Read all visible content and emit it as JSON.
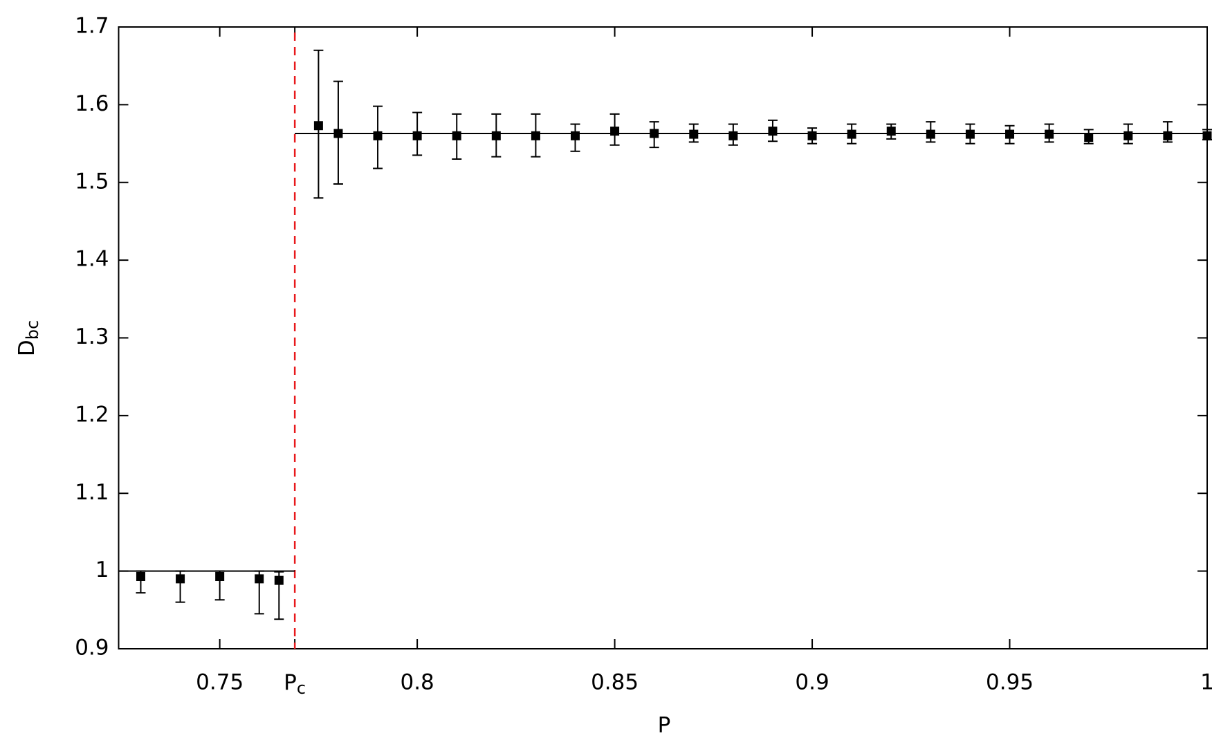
{
  "chart_data": {
    "type": "errorbar",
    "xlabel": "P",
    "ylabel": {
      "text": "D",
      "subscript": "bc"
    },
    "xlim": [
      0.7244,
      1
    ],
    "ylim": [
      0.9,
      1.7
    ],
    "xticks": [
      0.75,
      {
        "value": 0.769,
        "label": "P",
        "subscript": "c"
      },
      0.8,
      0.85,
      0.9,
      0.95,
      1
    ],
    "yticks": [
      0.9,
      1,
      1.1,
      1.2,
      1.3,
      1.4,
      1.5,
      1.6,
      1.7
    ],
    "critical_line": {
      "x": 0.769,
      "color": "#e8191c"
    },
    "fit_lines": [
      {
        "y": 1,
        "xrange": [
          0.7244,
          0.769
        ]
      },
      {
        "y": 1.563,
        "xrange": [
          0.769,
          1
        ]
      }
    ],
    "series": [
      {
        "color": "#000000",
        "x": [
          0.73,
          0.74,
          0.75,
          0.76,
          0.765,
          0.775,
          0.78,
          0.79,
          0.8,
          0.81,
          0.82,
          0.83,
          0.84,
          0.85,
          0.86,
          0.87,
          0.88,
          0.89,
          0.9,
          0.91,
          0.92,
          0.93,
          0.94,
          0.95,
          0.96,
          0.97,
          0.98,
          0.99,
          1
        ],
        "values": [
          0.993,
          0.99,
          0.993,
          0.99,
          0.988,
          1.573,
          1.563,
          1.56,
          1.56,
          1.56,
          1.56,
          1.56,
          1.56,
          1.566,
          1.563,
          1.562,
          1.56,
          1.566,
          1.56,
          1.562,
          1.566,
          1.562,
          1.562,
          1.562,
          1.562,
          1.558,
          1.56,
          1.56,
          1.56
        ],
        "y_low": [
          0.972,
          0.96,
          0.963,
          0.945,
          0.938,
          1.48,
          1.498,
          1.518,
          1.535,
          1.53,
          1.533,
          1.533,
          1.54,
          1.548,
          1.545,
          1.552,
          1.548,
          1.553,
          1.55,
          1.55,
          1.556,
          1.552,
          1.55,
          1.55,
          1.552,
          1.55,
          1.55,
          1.552,
          1.555
        ],
        "y_high": [
          1.0,
          1.0,
          1.0,
          1.0,
          0.999,
          1.67,
          1.63,
          1.598,
          1.59,
          1.588,
          1.588,
          1.588,
          1.575,
          1.588,
          1.578,
          1.575,
          1.575,
          1.58,
          1.57,
          1.575,
          1.575,
          1.578,
          1.575,
          1.573,
          1.575,
          1.568,
          1.575,
          1.578,
          1.568
        ]
      }
    ]
  }
}
